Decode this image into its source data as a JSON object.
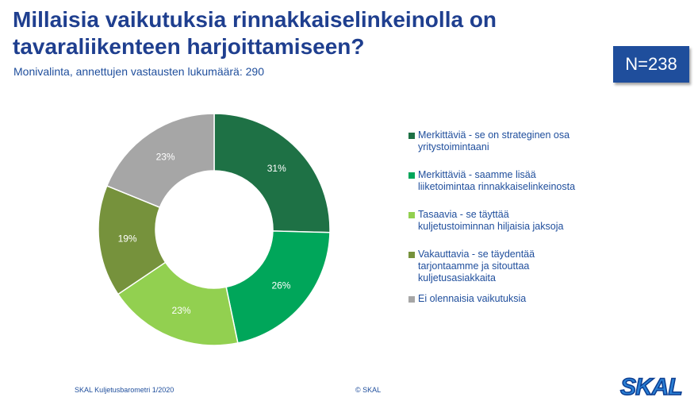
{
  "header": {
    "title": "Millaisia vaikutuksia rinnakkaiselinkeinolla on tavaraliikenteen harjoittamiseen?",
    "subtitle": "Monivalinta, annettujen vastausten lukumäärä: 290",
    "n_label": "N=238"
  },
  "chart_data": {
    "type": "pie",
    "donut": true,
    "categories": [
      "Merkittäviä - se on strateginen osa yritystoimintaani",
      "Merkittäviä - saamme lisää liiketoimintaa rinnakkaiselinkeinosta",
      "Tasaavia - se täyttää kuljetustoiminnan hiljaisia jaksoja",
      "Vakauttavia - se täydentää tarjontaamme ja sitouttaa kuljetusasiakkaita",
      "Ei olennaisia vaikutuksia"
    ],
    "values": [
      31,
      26,
      23,
      19,
      23
    ],
    "labels": [
      "31%",
      "26%",
      "23%",
      "19%",
      "23%"
    ],
    "colors": [
      "#1e7145",
      "#00a65a",
      "#92d050",
      "#76923c",
      "#a6a6a6"
    ],
    "legend_position": "right"
  },
  "legend": {
    "items": [
      [
        "Merkittäviä - se on strateginen osa",
        "yritystoimintaani"
      ],
      [
        "Merkittäviä - saamme lisää",
        "liiketoimintaa rinnakkaiselinkeinosta"
      ],
      [
        "Tasaavia - se täyttää",
        "kuljetustoiminnan hiljaisia jaksoja"
      ],
      [
        "Vakauttavia - se täydentää",
        "tarjontaamme ja sitouttaa",
        "kuljetusasiakkaita"
      ],
      [
        "Ei olennaisia vaikutuksia"
      ]
    ]
  },
  "footer": {
    "source": "SKAL Kuljetusbarometri 1/2020",
    "copyright": "© SKAL",
    "logo_text": "SKAL"
  }
}
